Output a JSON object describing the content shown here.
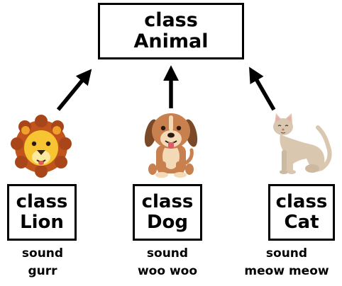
{
  "parent": {
    "keyword": "class",
    "name": "Animal"
  },
  "children": [
    {
      "keyword": "class",
      "name": "Lion",
      "sound_label": "sound",
      "sound_value": "gurr",
      "icon": "lion-icon"
    },
    {
      "keyword": "class",
      "name": "Dog",
      "sound_label": "sound",
      "sound_value": "woo woo",
      "icon": "dog-icon"
    },
    {
      "keyword": "class",
      "name": "Cat",
      "sound_label": "sound",
      "sound_value": "meow meow",
      "icon": "cat-icon"
    }
  ],
  "colors": {
    "border": "#000000",
    "lion_mane": "#c0541c",
    "lion_face": "#f7c531",
    "dog_body": "#c8814e",
    "dog_ears": "#7a4a28",
    "cat_body": "#d9c7b0"
  }
}
